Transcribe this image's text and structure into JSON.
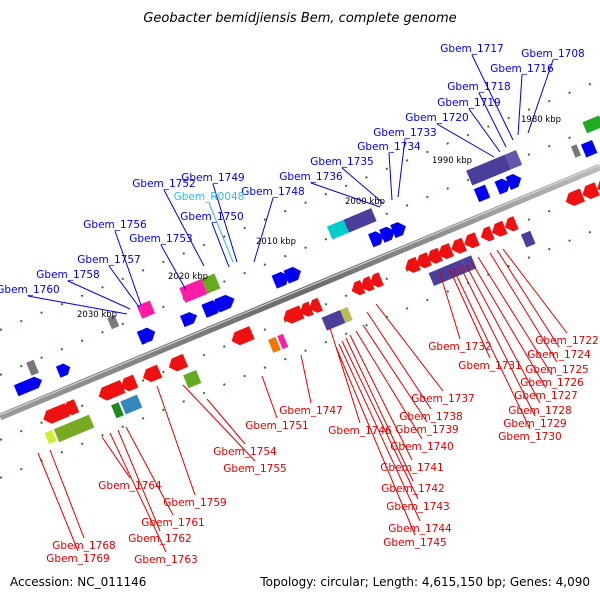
{
  "title": "Geobacter bemidjiensis Bem, complete genome",
  "footer": {
    "accession": "Accession: NC_011146",
    "topology": "Topology: circular; Length: 4,615,150 bp; Genes: 4,090"
  },
  "colors": {
    "forward_label": "#0000dd",
    "reverse_label": "#dd0000",
    "rna_label": "#33bbdd",
    "backbone": "#888888",
    "tick": "#2a7a2a"
  },
  "scale": {
    "labels": [
      "1980 kbp",
      "1990 kbp",
      "2000 kbp",
      "2010 kbp",
      "2020 kbp",
      "2030 kbp"
    ]
  },
  "forward_genes": [
    "Gbem_1708",
    "Gbem_1716",
    "Gbem_1717",
    "Gbem_1718",
    "Gbem_1719",
    "Gbem_1720",
    "Gbem_1733",
    "Gbem_1734",
    "Gbem_1735",
    "Gbem_1736",
    "Gbem_1748",
    "Gbem_1749",
    "Gbem_1750",
    "Gbem_1752",
    "Gbem_1753",
    "Gbem_1756",
    "Gbem_1757",
    "Gbem_1758",
    "Gbem_1760"
  ],
  "rna_genes": [
    "Gbem_R0048"
  ],
  "reverse_genes": [
    "Gbem_1722",
    "Gbem_1724",
    "Gbem_1725",
    "Gbem_1726",
    "Gbem_1727",
    "Gbem_1728",
    "Gbem_1729",
    "Gbem_1730",
    "Gbem_1731",
    "Gbem_1732",
    "Gbem_1737",
    "Gbem_1738",
    "Gbem_1739",
    "Gbem_1740",
    "Gbem_1741",
    "Gbem_1742",
    "Gbem_1743",
    "Gbem_1744",
    "Gbem_1745",
    "Gbem_1746",
    "Gbem_1747",
    "Gbem_1751",
    "Gbem_1754",
    "Gbem_1755",
    "Gbem_1759",
    "Gbem_1761",
    "Gbem_1762",
    "Gbem_1763",
    "Gbem_1764",
    "Gbem_1768",
    "Gbem_1769"
  ]
}
